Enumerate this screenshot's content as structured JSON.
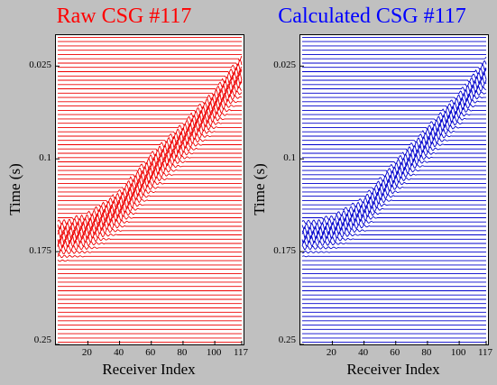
{
  "chart_data": [
    {
      "type": "line",
      "subtype": "seismic-wiggle",
      "title": "Raw CSG #117",
      "title_color": "#ff0000",
      "trace_color": "#ee0000",
      "xlabel": "Receiver Index",
      "ylabel": "Time (s)",
      "x_ticks": [
        "20",
        "40",
        "60",
        "80",
        "100",
        "117"
      ],
      "x_tick_values": [
        20,
        40,
        60,
        80,
        100,
        117
      ],
      "xlim": [
        1,
        117
      ],
      "y_ticks": [
        "0.025",
        "0.1",
        "0.175",
        "0.25"
      ],
      "y_tick_values": [
        0.025,
        0.1,
        0.175,
        0.25
      ],
      "ylim": [
        0.0,
        0.25
      ],
      "y_inverted": true,
      "receivers": 117,
      "first_arrival_time_s": [
        [
          1,
          0.155
        ],
        [
          20,
          0.148
        ],
        [
          40,
          0.13
        ],
        [
          60,
          0.1
        ],
        [
          80,
          0.075
        ],
        [
          100,
          0.048
        ],
        [
          117,
          0.02
        ]
      ],
      "event_band_s": 0.03,
      "grid": false
    },
    {
      "type": "line",
      "subtype": "seismic-wiggle",
      "title": "Calculated CSG #117",
      "title_color": "#0000ff",
      "trace_color": "#0000cc",
      "xlabel": "Receiver Index",
      "ylabel": "Time (s)",
      "x_ticks": [
        "20",
        "40",
        "60",
        "80",
        "100",
        "117"
      ],
      "x_tick_values": [
        20,
        40,
        60,
        80,
        100,
        117
      ],
      "xlim": [
        1,
        117
      ],
      "y_ticks": [
        "0.025",
        "0.1",
        "0.175",
        "0.25"
      ],
      "y_tick_values": [
        0.025,
        0.1,
        0.175,
        0.25
      ],
      "ylim": [
        0.0,
        0.25
      ],
      "y_inverted": true,
      "receivers": 117,
      "first_arrival_time_s": [
        [
          1,
          0.155
        ],
        [
          20,
          0.15
        ],
        [
          40,
          0.135
        ],
        [
          60,
          0.105
        ],
        [
          80,
          0.078
        ],
        [
          100,
          0.05
        ],
        [
          117,
          0.022
        ]
      ],
      "event_band_s": 0.025,
      "grid": false
    }
  ]
}
